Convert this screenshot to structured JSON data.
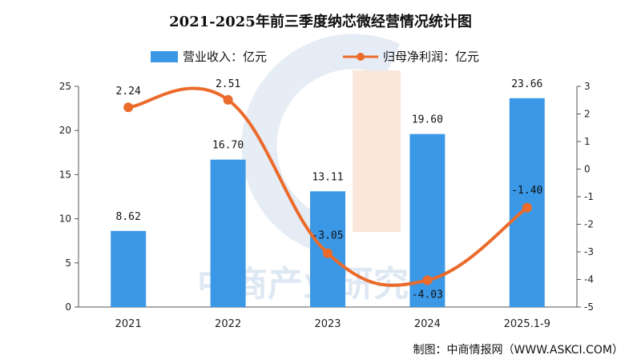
{
  "chart_data": {
    "type": "bar+line",
    "title": "2021-2025年前三季度纳芯微经营情况统计图",
    "categories": [
      "2021",
      "2022",
      "2023",
      "2024",
      "2025.1-9"
    ],
    "series": [
      {
        "name": "营业收入：亿元",
        "type": "bar",
        "axis": "left",
        "color": "#3b98e6",
        "values": [
          8.62,
          16.7,
          13.11,
          19.6,
          23.66
        ],
        "labels": [
          "8.62",
          "16.70",
          "13.11",
          "19.60",
          "23.66"
        ]
      },
      {
        "name": "归母净利润：亿元",
        "type": "line",
        "axis": "right",
        "color": "#ea6b2b",
        "values": [
          2.24,
          2.51,
          -3.05,
          -4.03,
          -1.4
        ],
        "labels": [
          "2.24",
          "2.51",
          "-3.05",
          "-4.03",
          "-1.40"
        ]
      }
    ],
    "y_left": {
      "min": 0,
      "max": 25,
      "ticks": [
        "0",
        "5",
        "10",
        "15",
        "20",
        "25"
      ]
    },
    "y_right": {
      "min": -5,
      "max": 3,
      "ticks": [
        "-5",
        "-4",
        "-3",
        "-2",
        "-1",
        "0",
        "1",
        "2",
        "3"
      ]
    },
    "legend_position": "top-center",
    "grid": false
  },
  "source_note": "制图：中商情报网（WWW.ASKCI.COM）",
  "watermark": "中商产业研究院"
}
